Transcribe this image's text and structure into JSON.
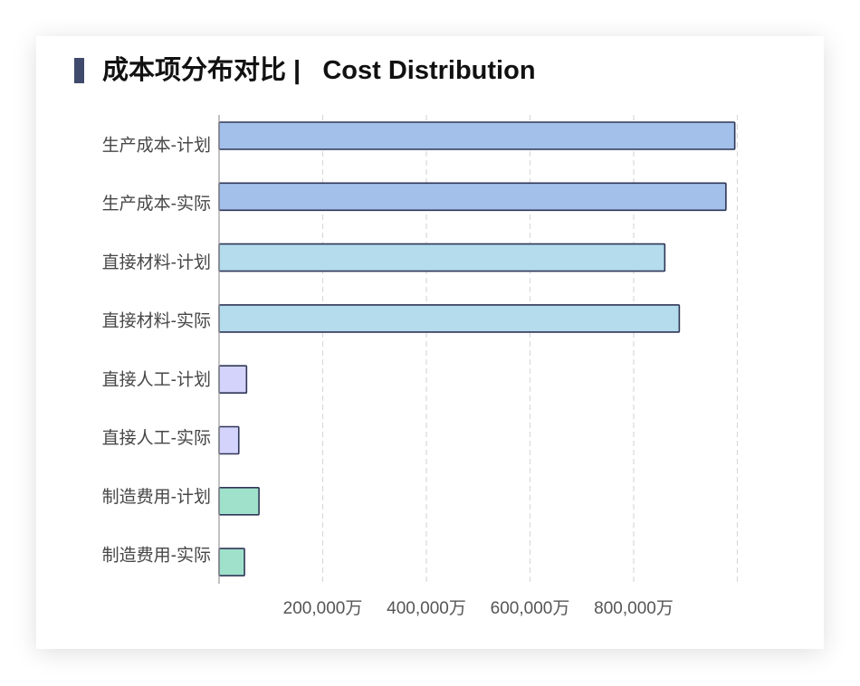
{
  "title": {
    "text": "成本项分布对比 |   Cost Distribution"
  },
  "chart_data": {
    "type": "bar",
    "orientation": "horizontal",
    "categories": [
      "生产成本-计划",
      "生产成本-实际",
      "直接材料-计划",
      "直接材料-实际",
      "直接人工-计划",
      "直接人工-实际",
      "制造费用-计划",
      "制造费用-实际"
    ],
    "values": [
      995000,
      978000,
      860000,
      888000,
      53000,
      38000,
      77000,
      49000
    ],
    "xlim": [
      0,
      1000000
    ],
    "xticks": [
      200000,
      400000,
      600000,
      800000
    ],
    "xtick_labels": [
      "200,000万",
      "400,000万",
      "600,000万",
      "800,000万"
    ],
    "grid": true,
    "bar_colors": [
      "#a2c0ea",
      "#a2c0ea",
      "#b4dcec",
      "#b4dcec",
      "#d3d3fc",
      "#d3d3fc",
      "#a0e1cb",
      "#a0e1cb"
    ],
    "bar_border_color": "#2f3657",
    "title_marker_color": "#3f4a6c"
  }
}
